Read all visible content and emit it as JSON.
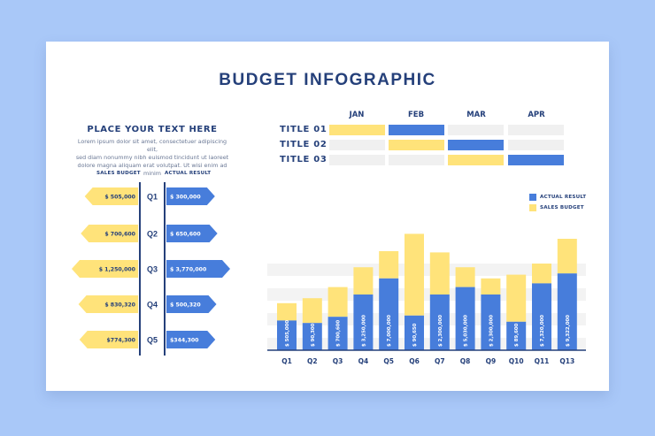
{
  "title": "BUDGET INFOGRAPHIC",
  "left_panel": {
    "heading": "PLACE YOUR TEXT HERE",
    "body_lines": [
      "Lorem ipsum dolor sit amet, consectetuer adipiscing elit,",
      "sed diam nonummy nibh euismod tincidunt ut laoreet",
      "dolore magna aliquam erat volutpat. Ut wisi enim ad minim"
    ],
    "sales_budget_label": "SALES BUDGET",
    "actual_result_label": "ACTUAL RESULT"
  },
  "colors": {
    "blue": "#477ddb",
    "yellow": "#ffe37a",
    "navy": "#25407a",
    "gray": "#f0f0f0"
  },
  "chart_data": [
    {
      "type": "bar",
      "orientation": "horizontal-mirrored",
      "categories": [
        "Q1",
        "Q2",
        "Q3",
        "Q4",
        "Q5"
      ],
      "series": [
        {
          "name": "SALES BUDGET",
          "values": [
            505000,
            700600,
            1250000,
            830320,
            774300
          ],
          "labels": [
            "$ 505,000",
            "$ 700,600",
            "$ 1,250,000",
            "$ 830,320",
            "$774,300"
          ]
        },
        {
          "name": "ACTUAL RESULT",
          "values": [
            300000,
            650600,
            3770000,
            500320,
            344300
          ],
          "labels": [
            "$ 300,000",
            "$ 650,600",
            "$ 3,770,000",
            "$ 500,320",
            "$344,300"
          ]
        }
      ]
    },
    {
      "type": "table",
      "months": [
        "JAN",
        "FEB",
        "MAR",
        "APR"
      ],
      "rows": [
        {
          "title": "TITLE 01",
          "cells": [
            "yellow",
            "blue",
            "gray",
            "gray"
          ]
        },
        {
          "title": "TITLE 02",
          "cells": [
            "gray",
            "yellow",
            "blue",
            "gray"
          ]
        },
        {
          "title": "TITLE 03",
          "cells": [
            "gray",
            "gray",
            "yellow",
            "blue"
          ]
        }
      ]
    },
    {
      "type": "bar",
      "stacked": true,
      "categories": [
        "Q1",
        "Q2",
        "Q3",
        "Q4",
        "Q5",
        "Q6",
        "Q7",
        "Q8",
        "Q9",
        "Q10",
        "Q11",
        "Q13"
      ],
      "series": [
        {
          "name": "ACTUAL RESULT",
          "values": [
            505000,
            90300,
            700600,
            3250000,
            7000000,
            90650,
            2300000,
            5030000,
            2300000,
            89600,
            7320000,
            9322000
          ],
          "labels": [
            "$ 505,000",
            "$ 90,300",
            "$ 700,600",
            "$ 3,250,000",
            "$ 7,000,000",
            "$ 90,650",
            "$ 2,300,000",
            "$ 5,030,000",
            "$ 2,300,000",
            "$ 89,600",
            "$ 7,320,000",
            "$ 9,322,000"
          ],
          "heights": [
            2.4,
            2.2,
            2.7,
            4.5,
            5.8,
            2.8,
            4.5,
            5.1,
            4.5,
            2.3,
            5.4,
            6.2
          ]
        },
        {
          "name": "SALES BUDGET",
          "heights": [
            1.4,
            2.0,
            2.4,
            2.2,
            2.2,
            6.6,
            3.4,
            1.6,
            1.3,
            3.8,
            1.6,
            2.8
          ]
        }
      ],
      "legend": [
        "ACTUAL RESULT",
        "SALES BUDGET"
      ],
      "legend_position": "top-right",
      "grid": true
    }
  ]
}
